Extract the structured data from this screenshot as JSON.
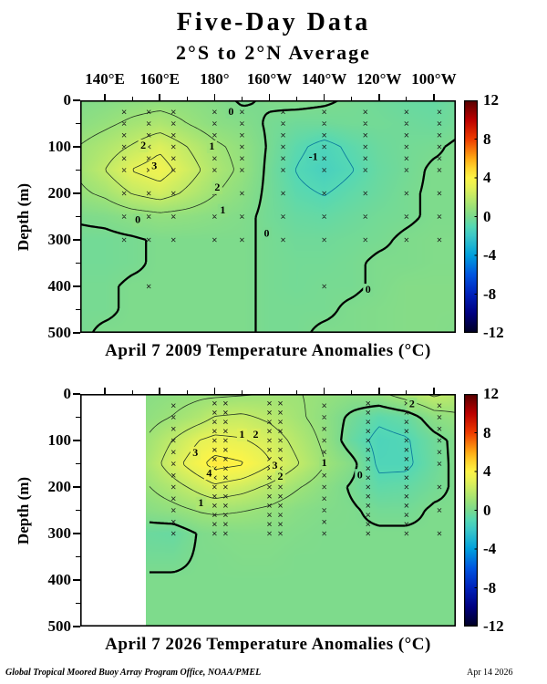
{
  "footer": {
    "credit": "Global Tropical Moored Buoy Array Program Office, NOAA/PMEL",
    "date": "Apr 14 2026"
  },
  "chart_data": {
    "type": "heatmap",
    "title": "Five-Day Data",
    "subtitle": "2°S to 2°N Average",
    "ylabel": "Depth (m)",
    "units": "°C",
    "x_axis": {
      "lon_min": 131,
      "lon_max": 268,
      "ticks": [
        {
          "lon": 140,
          "label": "140°E"
        },
        {
          "lon": 160,
          "label": "160°E"
        },
        {
          "lon": 180,
          "label": "180°"
        },
        {
          "lon": 200,
          "label": "160°W"
        },
        {
          "lon": 220,
          "label": "140°W"
        },
        {
          "lon": 240,
          "label": "120°W"
        },
        {
          "lon": 260,
          "label": "100°W"
        }
      ],
      "minor_ticks": [
        150,
        170,
        190,
        210,
        230,
        250
      ]
    },
    "y_axis": {
      "min": 0,
      "max": 500,
      "ticks": [
        0,
        100,
        200,
        300,
        400,
        500
      ],
      "minor_ticks": [
        50,
        150,
        250,
        350,
        450
      ]
    },
    "colorbar": {
      "min": -12,
      "max": 12,
      "ticks": [
        12,
        8,
        4,
        0,
        -4,
        -8,
        -12
      ],
      "stops": [
        [
          -12,
          "#000022"
        ],
        [
          -10,
          "#000080"
        ],
        [
          -8,
          "#0022bb"
        ],
        [
          -6,
          "#0055e0"
        ],
        [
          -4,
          "#00a0dd"
        ],
        [
          -2,
          "#3cc8c8"
        ],
        [
          -1,
          "#55d8b4"
        ],
        [
          0,
          "#7bda8e"
        ],
        [
          1,
          "#9ce278"
        ],
        [
          2,
          "#c0ea68"
        ],
        [
          3,
          "#e4f158"
        ],
        [
          4,
          "#fdf447"
        ],
        [
          5,
          "#ffd52e"
        ],
        [
          6,
          "#ffaa14"
        ],
        [
          8,
          "#ee3c00"
        ],
        [
          10,
          "#bb0000"
        ],
        [
          12,
          "#550000"
        ]
      ]
    },
    "contour_levels": {
      "thick": 0,
      "thin": [
        1,
        2,
        3,
        4
      ],
      "dashed": [
        -1
      ]
    },
    "panels": [
      {
        "id": "2009",
        "caption": "April 7 2009 Temperature Anomalies (°C)",
        "no_data_west_of": null,
        "grid": {
          "lons": [
            131,
            140,
            150,
            160,
            170,
            180,
            190,
            200,
            210,
            220,
            230,
            240,
            250,
            260,
            268
          ],
          "depths": [
            0,
            50,
            100,
            150,
            200,
            250,
            300,
            350,
            400,
            450,
            500
          ],
          "anomaly_c": [
            [
              0.2,
              0.3,
              0.5,
              0.6,
              0.5,
              0.3,
              -0.1,
              0.1,
              0.2,
              0.1,
              -0.1,
              -0.3,
              -0.5,
              -0.6,
              -0.3
            ],
            [
              0.5,
              0.8,
              1.2,
              1.5,
              1.0,
              0.5,
              0.3,
              -0.1,
              -0.3,
              -0.3,
              -0.2,
              -0.2,
              -0.3,
              -0.4,
              -0.2
            ],
            [
              1.05,
              1.5,
              2.1,
              2.8,
              2.0,
              1.2,
              0.7,
              -0.1,
              -0.8,
              -1.3,
              -0.8,
              -0.4,
              -0.2,
              -0.1,
              0.1
            ],
            [
              1.2,
              2.0,
              3.05,
              3.5,
              2.5,
              1.5,
              0.8,
              -0.2,
              -1.05,
              -1.5,
              -1.05,
              -0.5,
              -0.2,
              0.1,
              0.1
            ],
            [
              0.8,
              1.2,
              2.05,
              2.5,
              1.8,
              1.05,
              0.5,
              -0.2,
              -0.8,
              -1.05,
              -0.7,
              -0.4,
              -0.1,
              0.1,
              0.1
            ],
            [
              0.1,
              0.2,
              0.5,
              0.7,
              0.6,
              0.4,
              0.2,
              -0.2,
              -0.5,
              -0.6,
              -0.4,
              -0.2,
              -0.1,
              0.1,
              0.1
            ],
            [
              -0.2,
              -0.2,
              -0.1,
              0.1,
              0.1,
              0.1,
              0.1,
              -0.1,
              -0.3,
              -0.3,
              -0.2,
              -0.1,
              0.1,
              0.2,
              0.2
            ],
            [
              -0.2,
              -0.2,
              -0.1,
              0.1,
              0.1,
              0.1,
              0.1,
              -0.1,
              -0.2,
              -0.2,
              -0.1,
              0.1,
              0.1,
              0.2,
              0.2
            ],
            [
              -0.1,
              -0.1,
              0.1,
              0.1,
              0.1,
              0.1,
              0.1,
              -0.1,
              -0.2,
              -0.1,
              -0.1,
              0.1,
              0.3,
              0.3,
              0.3
            ],
            [
              -0.1,
              -0.1,
              0.1,
              0.1,
              0.1,
              0.1,
              0.1,
              -0.1,
              -0.1,
              -0.1,
              0.1,
              0.2,
              0.3,
              0.3,
              0.3
            ],
            [
              -0.1,
              0.1,
              0.1,
              0.1,
              0.1,
              0.1,
              0.1,
              -0.1,
              -0.1,
              0.1,
              0.1,
              0.2,
              0.3,
              0.3,
              0.2
            ]
          ]
        },
        "contour_labels": [
          {
            "lon": 154,
            "depth": 98,
            "text": "2"
          },
          {
            "lon": 158,
            "depth": 142,
            "text": "3"
          },
          {
            "lon": 179,
            "depth": 100,
            "text": "1"
          },
          {
            "lon": 181,
            "depth": 188,
            "text": "2"
          },
          {
            "lon": 183,
            "depth": 237,
            "text": "1"
          },
          {
            "lon": 186,
            "depth": 25,
            "text": "0"
          },
          {
            "lon": 216,
            "depth": 122,
            "text": "-1"
          },
          {
            "lon": 199,
            "depth": 287,
            "text": "0"
          },
          {
            "lon": 152,
            "depth": 258,
            "text": "0"
          },
          {
            "lon": 236,
            "depth": 408,
            "text": "0"
          }
        ],
        "buoys": [
          {
            "lon": 147,
            "depths": [
              25,
              50,
              75,
              100,
              125,
              150,
              200,
              250,
              300
            ]
          },
          {
            "lon": 156,
            "depths": [
              25,
              50,
              75,
              100,
              125,
              150,
              200,
              250,
              300,
              400
            ]
          },
          {
            "lon": 165,
            "depths": [
              25,
              50,
              75,
              100,
              125,
              150,
              200,
              250,
              300
            ]
          },
          {
            "lon": 180,
            "depths": [
              25,
              50,
              75,
              100,
              125,
              150,
              200,
              250,
              300
            ]
          },
          {
            "lon": 190,
            "depths": [
              25,
              50,
              75,
              100,
              125,
              150,
              200,
              250,
              300
            ]
          },
          {
            "lon": 205,
            "depths": [
              25,
              50,
              75,
              100,
              125,
              150,
              200,
              250,
              300
            ]
          },
          {
            "lon": 220,
            "depths": [
              25,
              50,
              75,
              100,
              125,
              150,
              200,
              250,
              300,
              400
            ]
          },
          {
            "lon": 235,
            "depths": [
              25,
              50,
              75,
              100,
              125,
              150,
              200,
              250,
              300
            ]
          },
          {
            "lon": 250,
            "depths": [
              25,
              50,
              75,
              100,
              125,
              150,
              200,
              250,
              300
            ]
          },
          {
            "lon": 262,
            "depths": [
              25,
              50,
              75,
              100,
              125,
              150,
              200,
              250,
              300
            ]
          }
        ]
      },
      {
        "id": "2026",
        "caption": "April 7 2026 Temperature Anomalies (°C)",
        "no_data_west_of": 155,
        "grid": {
          "lons": [
            155,
            165,
            175,
            180,
            190,
            200,
            210,
            220,
            230,
            240,
            250,
            260,
            268
          ],
          "depths": [
            0,
            50,
            100,
            150,
            200,
            250,
            300,
            350,
            400,
            450,
            500
          ],
          "anomaly_c": [
            [
              0.4,
              0.6,
              0.8,
              0.8,
              0.9,
              1.05,
              1.05,
              0.8,
              0.6,
              0.8,
              1.5,
              2.2,
              1.8
            ],
            [
              0.6,
              1.05,
              1.6,
              2.05,
              2.2,
              1.8,
              1.2,
              0.6,
              -0.2,
              -0.8,
              -0.5,
              0.5,
              0.8
            ],
            [
              1.05,
              2.05,
              3.05,
              3.3,
              3.1,
              2.6,
              1.7,
              0.8,
              -0.5,
              -1.3,
              -1.1,
              -0.3,
              0.2
            ],
            [
              1.3,
              2.6,
              3.8,
              4.4,
              4.1,
              3.1,
              2.1,
              1.05,
              0.3,
              -1.2,
              -1.2,
              -0.4,
              0.2
            ],
            [
              0.9,
              1.6,
              2.4,
              2.8,
              2.4,
              1.8,
              1.1,
              0.5,
              -0.1,
              -0.7,
              -0.6,
              -0.2,
              0.1
            ],
            [
              0.4,
              0.7,
              1.1,
              1.2,
              1.05,
              0.8,
              0.4,
              0.2,
              0.1,
              -0.2,
              -0.2,
              0.1,
              0.1
            ],
            [
              -0.4,
              -0.5,
              0.1,
              0.2,
              0.3,
              0.3,
              0.2,
              0.1,
              0.1,
              0.1,
              0.1,
              0.1,
              0.1
            ],
            [
              -0.2,
              -0.2,
              0.1,
              0.1,
              0.2,
              0.2,
              0.1,
              0.1,
              0.1,
              0.1,
              0.1,
              0.1,
              0.1
            ],
            [
              0.1,
              0.1,
              0.1,
              0.1,
              0.1,
              0.1,
              0.1,
              0.1,
              0.1,
              0.1,
              0.1,
              0.1,
              0.1
            ],
            [
              0.1,
              0.1,
              0.1,
              0.1,
              0.1,
              0.1,
              0.1,
              0.1,
              0.1,
              0.1,
              0.1,
              0.1,
              0.1
            ],
            [
              0.1,
              0.1,
              0.1,
              0.1,
              0.1,
              0.1,
              0.1,
              0.1,
              0.1,
              0.1,
              0.1,
              0.1,
              0.1
            ]
          ]
        },
        "contour_labels": [
          {
            "lon": 190,
            "depth": 88,
            "text": "1"
          },
          {
            "lon": 195,
            "depth": 88,
            "text": "2"
          },
          {
            "lon": 173,
            "depth": 127,
            "text": "3"
          },
          {
            "lon": 178,
            "depth": 171,
            "text": "4"
          },
          {
            "lon": 202,
            "depth": 155,
            "text": "3"
          },
          {
            "lon": 204,
            "depth": 178,
            "text": "2"
          },
          {
            "lon": 220,
            "depth": 149,
            "text": "1"
          },
          {
            "lon": 233,
            "depth": 175,
            "text": "0"
          },
          {
            "lon": 175,
            "depth": 235,
            "text": "1"
          },
          {
            "lon": 252,
            "depth": 22,
            "text": "2"
          }
        ],
        "buoys": [
          {
            "lon": 165,
            "depths": [
              25,
              50,
              75,
              100,
              125,
              150,
              175,
              200,
              225,
              250,
              275,
              300
            ]
          },
          {
            "lon": 180,
            "depths": [
              20,
              40,
              60,
              80,
              100,
              120,
              140,
              160,
              180,
              200,
              220,
              240,
              260,
              280,
              300
            ]
          },
          {
            "lon": 184,
            "depths": [
              20,
              40,
              60,
              80,
              100,
              120,
              140,
              160,
              180,
              200,
              220,
              240,
              260,
              280,
              300
            ]
          },
          {
            "lon": 200,
            "depths": [
              20,
              40,
              60,
              80,
              100,
              120,
              140,
              160,
              180,
              200,
              220,
              240,
              260,
              280,
              300
            ]
          },
          {
            "lon": 204,
            "depths": [
              20,
              40,
              60,
              80,
              100,
              120,
              140,
              160,
              180,
              200,
              220,
              240,
              260,
              280,
              300
            ]
          },
          {
            "lon": 220,
            "depths": [
              25,
              50,
              75,
              100,
              125,
              150,
              175,
              200,
              225,
              250,
              275,
              300
            ]
          },
          {
            "lon": 236,
            "depths": [
              20,
              40,
              60,
              80,
              100,
              120,
              140,
              160,
              180,
              200,
              220,
              240,
              260,
              280,
              300
            ]
          },
          {
            "lon": 250,
            "depths": [
              20,
              40,
              60,
              80,
              100,
              120,
              140,
              160,
              180,
              200,
              220,
              240,
              260,
              280,
              300
            ]
          },
          {
            "lon": 262,
            "depths": [
              25,
              50,
              75,
              100,
              125,
              150,
              200,
              250,
              300
            ]
          }
        ]
      }
    ]
  }
}
